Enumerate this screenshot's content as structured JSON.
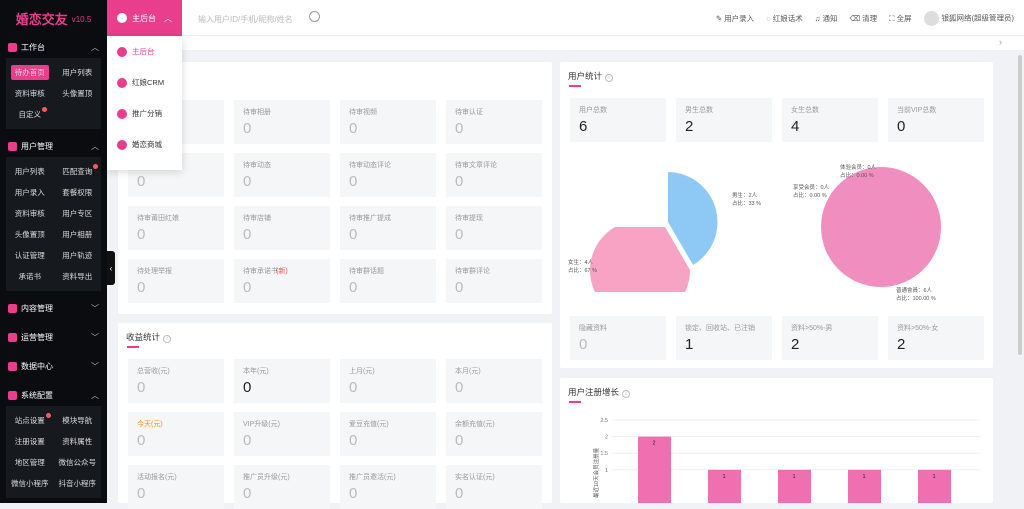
{
  "app": {
    "title": "婚恋交友",
    "version": "v10.5"
  },
  "sidebar": {
    "workbench": "工作台",
    "workbench_items": [
      "待办首页",
      "用户列表",
      "资料审核",
      "头像置顶",
      "自定义"
    ],
    "user_mgmt": "用户管理",
    "user_items": [
      "用户列表",
      "匹配查询",
      "用户录入",
      "套餐权限",
      "资料审核",
      "用户专区",
      "头像置顶",
      "用户相册",
      "认证管理",
      "用户轨迹",
      "承诺书",
      "资料导出"
    ],
    "content_mgmt": "内容管理",
    "ops_mgmt": "运营管理",
    "data_center": "数据中心",
    "sys_config": "系统配置",
    "sys_items": [
      "站点设置",
      "模块导航",
      "注册设置",
      "资料属性",
      "地区管理",
      "微信公众号",
      "微信小程序",
      "抖音小程序"
    ]
  },
  "topbar": {
    "home_label": "主后台",
    "search_placeholder": "输入用户ID/手机/昵称/姓名",
    "links": [
      "用户录入",
      "红娘话术",
      "通知",
      "清理",
      "全屏"
    ],
    "user": "银狐网络(超级管理员)"
  },
  "dropdown": [
    "主后台",
    "红娘CRM",
    "推广分销",
    "婚恋商城"
  ],
  "pending": {
    "items": [
      {
        "label": "",
        "value": "0"
      },
      {
        "label": "待审相册",
        "value": "0"
      },
      {
        "label": "待审视频",
        "value": "0"
      },
      {
        "label": "待审认证",
        "value": "0"
      },
      {
        "label": "",
        "value": "0"
      },
      {
        "label": "待审动态",
        "value": "0"
      },
      {
        "label": "待审动态评论",
        "value": "0"
      },
      {
        "label": "待审文章评论",
        "value": "0"
      },
      {
        "label": "待审莆田红娘",
        "value": "0"
      },
      {
        "label": "待审店铺",
        "value": "0"
      },
      {
        "label": "待审推广提成",
        "value": "0"
      },
      {
        "label": "待审提现",
        "value": "0"
      },
      {
        "label": "待处理举报",
        "value": "0"
      },
      {
        "label": "待审承诺书",
        "value": "0"
      },
      {
        "label": "待审群话题",
        "value": "0"
      },
      {
        "label": "待审群评论",
        "value": "0"
      }
    ],
    "new_badge": "(新)"
  },
  "revenue": {
    "title": "收益统计",
    "items": [
      {
        "label": "总营收(元)",
        "value": "0"
      },
      {
        "label": "本年(元)",
        "value": "0"
      },
      {
        "label": "上月(元)",
        "value": "0"
      },
      {
        "label": "本月(元)",
        "value": "0"
      },
      {
        "label": "今天(元)",
        "value": "0"
      },
      {
        "label": "VIP升级(元)",
        "value": "0"
      },
      {
        "label": "爱豆充值(元)",
        "value": "0"
      },
      {
        "label": "余额充值(元)",
        "value": "0"
      },
      {
        "label": "活动报名(元)",
        "value": "0"
      },
      {
        "label": "推广员升级(元)",
        "value": "0"
      },
      {
        "label": "推广员邀活(元)",
        "value": "0"
      },
      {
        "label": "实名认证(元)",
        "value": "0"
      }
    ]
  },
  "user_stats": {
    "title": "用户统计",
    "top": [
      {
        "label": "用户总数",
        "value": "6"
      },
      {
        "label": "男生总数",
        "value": "2"
      },
      {
        "label": "女生总数",
        "value": "4"
      },
      {
        "label": "当前VIP总数",
        "value": "0"
      }
    ],
    "bottom": [
      {
        "label": "隐藏资料",
        "value": "0"
      },
      {
        "label": "锁定、回收站、已注销",
        "value": "1"
      },
      {
        "label": "资料>50%-男",
        "value": "2"
      },
      {
        "label": "资料>50%-女",
        "value": "2"
      }
    ],
    "pie1": {
      "male_label": "男生：2人",
      "male_pct": "占比：33 %",
      "female_label": "女生：4人",
      "female_pct": "占比：67 %"
    },
    "pie2": {
      "trial_label": "体验会员：0人",
      "trial_pct": "占比：0.00 %",
      "vip_label": "享受会员：0人",
      "vip_pct": "占比：0.00 %",
      "normal_label": "普通會員：6人",
      "normal_pct": "占比：100.00 %"
    }
  },
  "growth": {
    "title": "用户注册增长",
    "ylabel": "最近10天会员注册量",
    "yticks": [
      "2.5",
      "2",
      "1.5",
      "1"
    ],
    "bars": [
      "2",
      "1",
      "1",
      "1",
      "1"
    ]
  },
  "chart_data": {
    "type": "bar",
    "title": "用户注册增长",
    "ylabel": "最近10天会员注册量",
    "ylim": [
      0,
      2.5
    ],
    "values": [
      2,
      1,
      1,
      1,
      1
    ]
  }
}
